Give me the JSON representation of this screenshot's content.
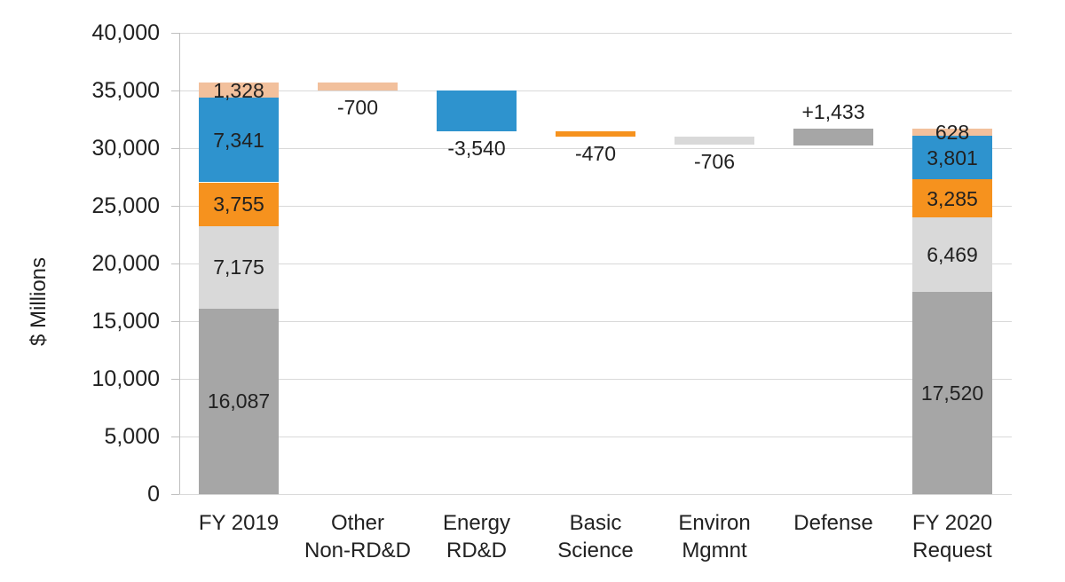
{
  "chart_data": {
    "type": "waterfall",
    "title": "",
    "ylabel": "$ Millions",
    "ylim": [
      0,
      40000
    ],
    "ytick_step": 5000,
    "ytick_labels": [
      "0",
      "5,000",
      "10,000",
      "15,000",
      "20,000",
      "25,000",
      "30,000",
      "35,000",
      "40,000"
    ],
    "grid": "horizontal",
    "legend": "none",
    "colors": {
      "gray": "#a6a6a6",
      "light_gray": "#d9d9d9",
      "orange": "#f6921e",
      "blue": "#2e93ce",
      "peach": "#f2c09c"
    },
    "columns": [
      {
        "kind": "stacked",
        "category_lines": [
          "FY 2019"
        ],
        "total": 35686,
        "segments": [
          {
            "value": 16087,
            "label": "16,087",
            "color": "gray"
          },
          {
            "value": 7175,
            "label": "7,175",
            "color": "light_gray"
          },
          {
            "value": 3755,
            "label": "3,755",
            "color": "orange"
          },
          {
            "value": 7341,
            "label": "7,341",
            "color": "blue"
          },
          {
            "value": 1328,
            "label": "1,328",
            "color": "peach"
          }
        ]
      },
      {
        "kind": "delta",
        "category_lines": [
          "Other",
          "Non-RD&D"
        ],
        "value": -700,
        "label": "-700",
        "color": "peach"
      },
      {
        "kind": "delta",
        "category_lines": [
          "Energy",
          "RD&D"
        ],
        "value": -3540,
        "label": "-3,540",
        "color": "blue"
      },
      {
        "kind": "delta",
        "category_lines": [
          "Basic",
          "Science"
        ],
        "value": -470,
        "label": "-470",
        "color": "orange"
      },
      {
        "kind": "delta",
        "category_lines": [
          "Environ",
          "Mgmnt"
        ],
        "value": -706,
        "label": "-706",
        "color": "light_gray"
      },
      {
        "kind": "delta",
        "category_lines": [
          "Defense"
        ],
        "value": 1433,
        "label": "+1,433",
        "color": "gray"
      },
      {
        "kind": "stacked",
        "category_lines": [
          "FY 2020",
          "Request"
        ],
        "total": 31703,
        "segments": [
          {
            "value": 17520,
            "label": "17,520",
            "color": "gray"
          },
          {
            "value": 6469,
            "label": "6,469",
            "color": "light_gray"
          },
          {
            "value": 3285,
            "label": "3,285",
            "color": "orange"
          },
          {
            "value": 3801,
            "label": "3,801",
            "color": "blue"
          },
          {
            "value": 628,
            "label": "628",
            "color": "peach"
          }
        ]
      }
    ]
  }
}
